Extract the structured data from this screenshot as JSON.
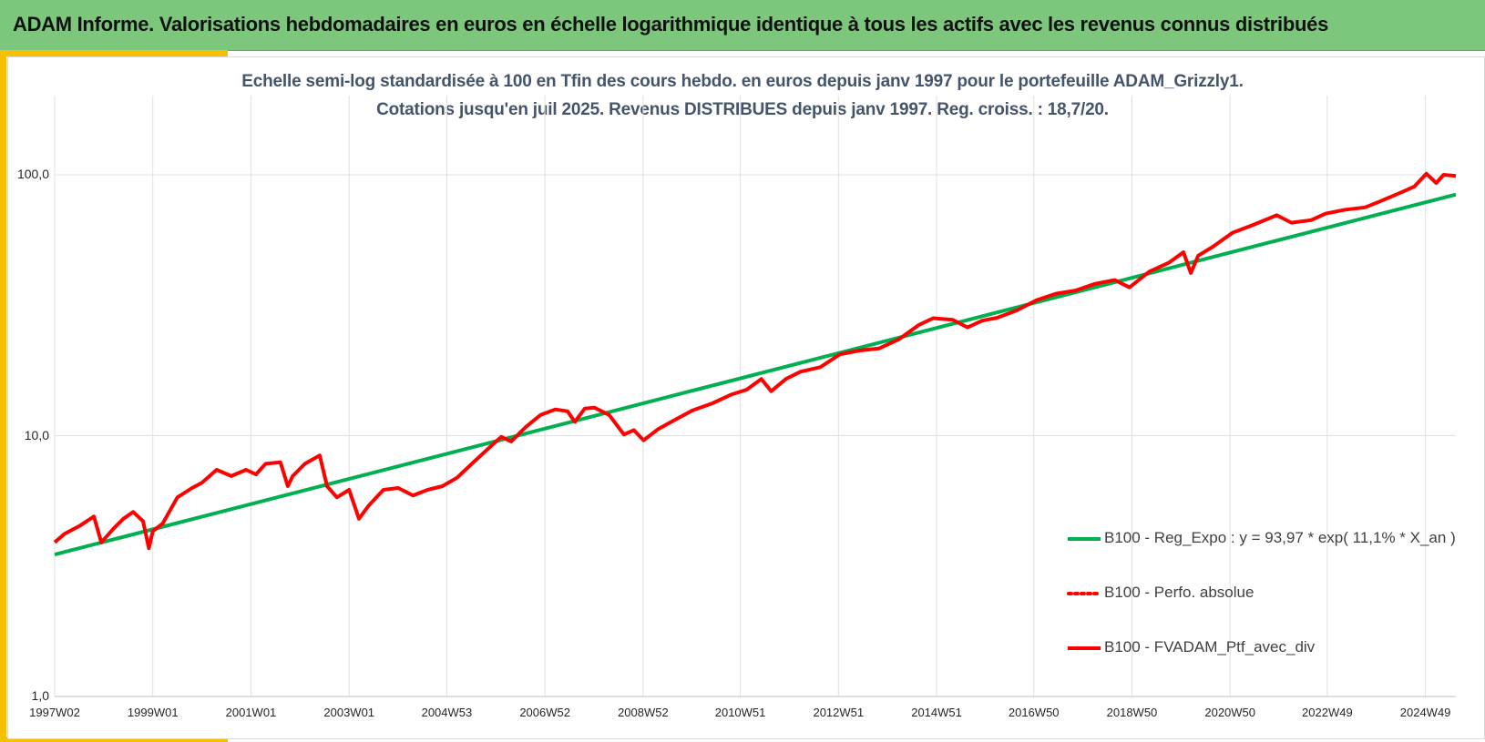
{
  "header": {
    "title": "ADAM Informe. Valorisations hebdomadaires en euros en échelle logarithmique identique à tous les actifs avec les revenus connus distribués"
  },
  "colors": {
    "banner": "#7dc77d",
    "accent": "#f5c000",
    "title_text": "#44546a",
    "regression": "#00b050",
    "portfolio": "#ff0000",
    "gridline": "#e0e0e0"
  },
  "chart_data": {
    "type": "line",
    "title": "Echelle semi-log standardisée à 100 en Tfin des cours hebdo. en euros depuis janv 1997 pour le portefeuille ADAM_Grizzly1.",
    "subtitle": "Cotations jusqu'en juil 2025. Revenus DISTRIBUES depuis janv 1997. Reg. croiss. : 18,7/20.",
    "xlabel": "",
    "ylabel": "",
    "y_scale": "log",
    "ylim": [
      1,
      200
    ],
    "xlim": [
      "1997W02",
      "2025W30"
    ],
    "yticks": [
      {
        "value": 1,
        "label": "1,0"
      },
      {
        "value": 10,
        "label": "10,0"
      },
      {
        "value": 100,
        "label": "100,0"
      }
    ],
    "xticks": [
      {
        "label": "1997W02",
        "year": 1997.0
      },
      {
        "label": "1999W01",
        "year": 1999.0
      },
      {
        "label": "2001W01",
        "year": 2001.0
      },
      {
        "label": "2003W01",
        "year": 2003.0
      },
      {
        "label": "2004W53",
        "year": 2004.99
      },
      {
        "label": "2006W52",
        "year": 2006.99
      },
      {
        "label": "2008W52",
        "year": 2008.99
      },
      {
        "label": "2010W51",
        "year": 2010.97
      },
      {
        "label": "2012W51",
        "year": 2012.97
      },
      {
        "label": "2014W51",
        "year": 2014.97
      },
      {
        "label": "2016W50",
        "year": 2016.95
      },
      {
        "label": "2018W50",
        "year": 2018.95
      },
      {
        "label": "2020W50",
        "year": 2020.95
      },
      {
        "label": "2022W49",
        "year": 2022.93
      },
      {
        "label": "2024W49",
        "year": 2024.93
      }
    ],
    "grid": {
      "vertical": true,
      "horizontal": true
    },
    "legend_position": "bottom-right",
    "series": [
      {
        "name": "B100 - Reg_Expo : y = 93,97 * exp( 11,1% *  X_an )",
        "style": "solid",
        "color": "#00b050",
        "x": [
          1997.0,
          2025.55
        ],
        "y": [
          3.5,
          84.0
        ]
      },
      {
        "name": "B100 - Perfo. absolue",
        "style": "dotted",
        "color": "#ff0000",
        "x": [],
        "y": []
      },
      {
        "name": "B100 - FVADAM_Ptf_avec_div",
        "style": "solid",
        "color": "#ff0000",
        "x": [
          1997.0,
          1997.2,
          1997.5,
          1997.8,
          1997.95,
          1998.2,
          1998.4,
          1998.6,
          1998.8,
          1998.92,
          1999.0,
          1999.2,
          1999.5,
          1999.8,
          2000.0,
          2000.3,
          2000.6,
          2000.9,
          2001.1,
          2001.3,
          2001.6,
          2001.75,
          2001.85,
          2002.1,
          2002.4,
          2002.55,
          2002.75,
          2003.0,
          2003.2,
          2003.4,
          2003.7,
          2004.0,
          2004.3,
          2004.6,
          2004.9,
          2005.2,
          2005.5,
          2005.8,
          2006.1,
          2006.3,
          2006.6,
          2006.9,
          2007.2,
          2007.45,
          2007.6,
          2007.8,
          2008.0,
          2008.3,
          2008.6,
          2008.8,
          2009.0,
          2009.3,
          2009.6,
          2010.0,
          2010.4,
          2010.8,
          2011.1,
          2011.4,
          2011.6,
          2011.9,
          2012.2,
          2012.6,
          2013.0,
          2013.4,
          2013.8,
          2014.2,
          2014.6,
          2014.9,
          2015.3,
          2015.6,
          2015.9,
          2016.2,
          2016.6,
          2017.0,
          2017.4,
          2017.8,
          2018.2,
          2018.6,
          2018.9,
          2019.3,
          2019.7,
          2020.0,
          2020.15,
          2020.3,
          2020.6,
          2021.0,
          2021.4,
          2021.9,
          2022.2,
          2022.6,
          2022.9,
          2023.3,
          2023.7,
          2024.0,
          2024.4,
          2024.7,
          2024.95,
          2025.15,
          2025.3,
          2025.55
        ],
        "y": [
          3.9,
          4.2,
          4.5,
          4.9,
          3.9,
          4.4,
          4.8,
          5.1,
          4.7,
          3.7,
          4.3,
          4.6,
          5.8,
          6.3,
          6.6,
          7.4,
          7.0,
          7.4,
          7.1,
          7.8,
          7.9,
          6.4,
          7.0,
          7.8,
          8.4,
          6.4,
          5.8,
          6.2,
          4.8,
          5.4,
          6.2,
          6.3,
          5.9,
          6.2,
          6.4,
          6.9,
          7.8,
          8.8,
          9.9,
          9.5,
          10.8,
          12.0,
          12.6,
          12.4,
          11.3,
          12.7,
          12.8,
          12.0,
          10.1,
          10.5,
          9.6,
          10.6,
          11.4,
          12.5,
          13.3,
          14.4,
          15.0,
          16.5,
          14.8,
          16.5,
          17.6,
          18.3,
          20.5,
          21.2,
          21.6,
          23.4,
          26.5,
          28.2,
          27.8,
          26.0,
          27.6,
          28.3,
          30.2,
          33.0,
          35.0,
          36.0,
          38.2,
          39.5,
          37.0,
          42.5,
          46.0,
          50.5,
          42.0,
          49.0,
          53.0,
          60.0,
          64.0,
          70.0,
          65.5,
          67.0,
          71.0,
          73.5,
          75.0,
          79.0,
          85.0,
          90.0,
          101.0,
          93.0,
          100.0,
          99.0
        ]
      }
    ]
  }
}
